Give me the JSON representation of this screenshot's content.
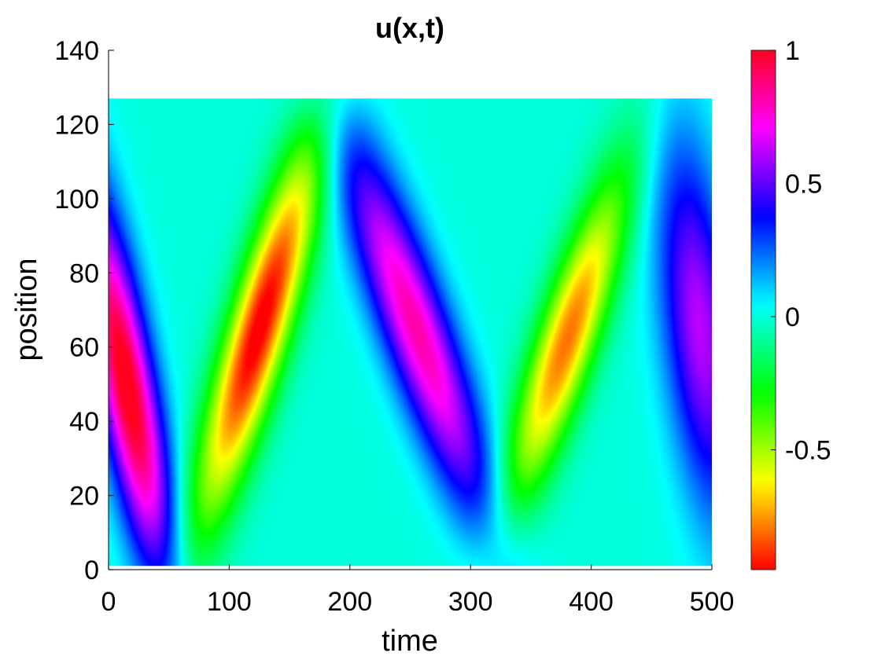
{
  "chart_data": {
    "type": "heatmap",
    "title": "u(x,t)",
    "xlabel": "time",
    "ylabel": "position",
    "xlim": [
      0,
      500
    ],
    "ylim": [
      0,
      140
    ],
    "xticks": [
      0,
      100,
      200,
      300,
      400,
      500
    ],
    "yticks": [
      0,
      20,
      40,
      60,
      80,
      100,
      120,
      140
    ],
    "data_extent": {
      "x": [
        0,
        500
      ],
      "y": [
        1,
        127
      ]
    },
    "colormap": "hsv",
    "colorbar": {
      "clim": [
        -0.95,
        1
      ],
      "ticks": [
        -0.5,
        0,
        0.5,
        1
      ],
      "tick_labels": [
        "-0.5",
        "0",
        "0.5",
        "1"
      ]
    },
    "blobs": [
      {
        "t": 15,
        "x": 50,
        "amp": 1.05,
        "description": "positive lobe near t=0-60"
      },
      {
        "t": 125,
        "x": 65,
        "amp": -0.98,
        "description": "negative lobe near t=80-180"
      },
      {
        "t": 255,
        "x": 65,
        "amp": 0.82,
        "description": "positive lobe near t=200-320"
      },
      {
        "t": 380,
        "x": 62,
        "amp": -0.8,
        "description": "negative lobe near t=340-430"
      },
      {
        "t": 490,
        "x": 65,
        "amp": 0.62,
        "description": "positive lobe near t=460-500"
      }
    ],
    "grid": false
  }
}
